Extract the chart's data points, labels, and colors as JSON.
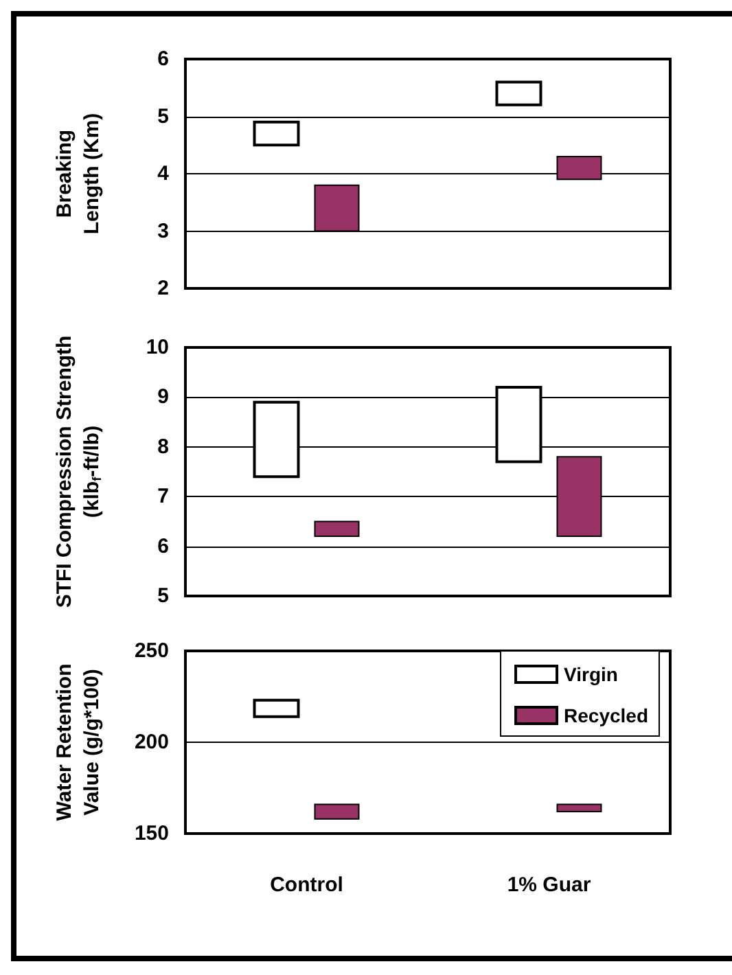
{
  "chart_data": [
    {
      "type": "bar",
      "ylabel": "Breaking Length (Km)",
      "categories": [
        null,
        null
      ],
      "ylim": [
        2,
        6
      ],
      "yticks": [
        2,
        3,
        4,
        5,
        6
      ],
      "grid": "y",
      "tick_labels": "y",
      "legend": false,
      "series": [
        {
          "color": "#ffffff",
          "base": [
            4.5,
            5.2
          ],
          "values": [
            0.4,
            0.4
          ]
        },
        {
          "color": "#993366",
          "base": [
            3.0,
            3.9
          ],
          "values": [
            0.8,
            0.4
          ]
        }
      ]
    },
    {
      "type": "bar",
      "ylabel": "STFI Compression Strength (klb$_{f}$-ft/lb)",
      "categories": [
        null,
        null
      ],
      "ylim": [
        5,
        10
      ],
      "yticks": [
        5,
        6,
        7,
        8,
        9,
        10
      ],
      "grid": "y",
      "tick_labels": "y",
      "legend": false,
      "series": [
        {
          "color": "#ffffff",
          "base": [
            7.4,
            7.7
          ],
          "values": [
            1.5,
            1.5
          ]
        },
        {
          "color": "#993366",
          "base": [
            6.2,
            6.2
          ],
          "values": [
            0.3,
            1.6
          ]
        }
      ]
    },
    {
      "type": "bar",
      "ylabel": "Water Retention Value (g/g*100)",
      "categories": [
        "Control",
        "1% Guar"
      ],
      "ylim": [
        150,
        250
      ],
      "yticks": [
        150,
        200,
        250
      ],
      "grid": "y",
      "legend": "top right",
      "series": [
        {
          "name": "Virgin",
          "color": "#ffffff",
          "base": [
            214,
            null
          ],
          "values": [
            9,
            null
          ]
        },
        {
          "name": "Recycled",
          "color": "#993366",
          "base": [
            158,
            162
          ],
          "values": [
            8,
            4
          ]
        }
      ]
    }
  ]
}
